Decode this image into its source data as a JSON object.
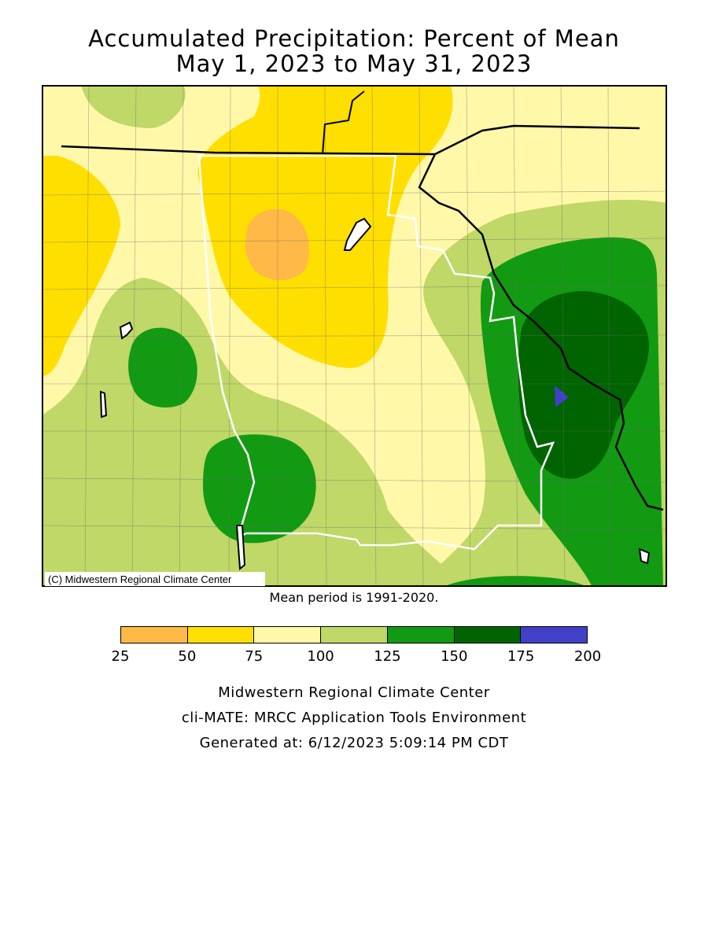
{
  "title": {
    "line1": "Accumulated Precipitation: Percent of Mean",
    "line2": "May 1, 2023 to May 31, 2023"
  },
  "map": {
    "copyright": "(C) Midwestern Regional Climate Center"
  },
  "mean_period": "Mean period is 1991-2020.",
  "legend": {
    "colors": [
      "#ffb946",
      "#ffdf00",
      "#fff8a8",
      "#bfd867",
      "#129a12",
      "#006400",
      "#4040c8"
    ],
    "tick_labels": [
      "25",
      "50",
      "75",
      "100",
      "125",
      "150",
      "175",
      "200"
    ]
  },
  "credits": {
    "line1": "Midwestern Regional Climate Center",
    "line2": "cli-MATE: MRCC Application Tools Environment",
    "line3": "Generated at: 6/12/2023 5:09:14 PM CDT"
  }
}
